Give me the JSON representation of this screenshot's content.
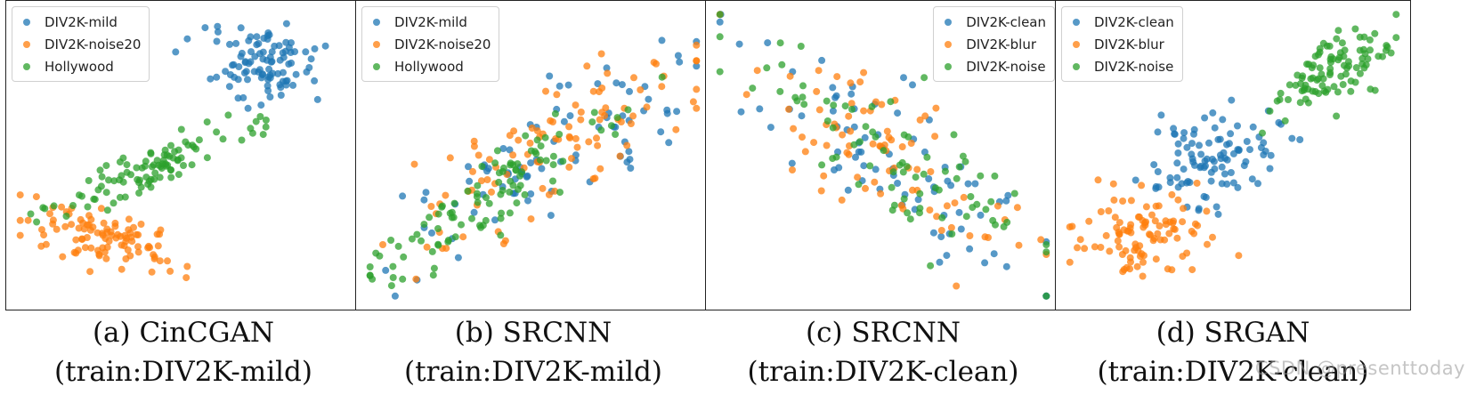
{
  "colors": {
    "blue": "#1f77b4",
    "orange": "#ff7f0e",
    "green": "#2ca02c"
  },
  "watermark": "CSDN @presenttoday",
  "chart_data": [
    {
      "type": "scatter",
      "title": "",
      "xlabel": "",
      "ylabel": "",
      "xlim": [
        0,
        100
      ],
      "ylim": [
        0,
        100
      ],
      "legend_position": "top-left",
      "caption": [
        "(a) CinCGAN",
        "(train:DIV2K-mild)"
      ],
      "series": [
        {
          "name": "DIV2K-mild",
          "color": "#1f77b4",
          "center": [
            75,
            82
          ],
          "spread": [
            8,
            7
          ],
          "angle": 10,
          "count": 100
        },
        {
          "name": "DIV2K-noise20",
          "color": "#ff7f0e",
          "center": [
            25,
            22
          ],
          "spread": [
            11,
            5
          ],
          "angle": -20,
          "count": 100
        },
        {
          "name": "Hollywood",
          "color": "#2ca02c",
          "center": [
            40,
            45
          ],
          "spread": [
            15,
            3.5
          ],
          "angle": 27,
          "count": 100
        }
      ]
    },
    {
      "type": "scatter",
      "title": "",
      "xlabel": "",
      "ylabel": "",
      "xlim": [
        0,
        100
      ],
      "ylim": [
        0,
        100
      ],
      "legend_position": "top-left",
      "caption": [
        "(b) SRCNN",
        "(train:DIV2K-mild)"
      ],
      "series": [
        {
          "name": "DIV2K-mild",
          "color": "#1f77b4",
          "center": [
            55,
            50
          ],
          "spread": [
            25,
            8
          ],
          "angle": 38,
          "count": 85
        },
        {
          "name": "DIV2K-noise20",
          "color": "#ff7f0e",
          "center": [
            55,
            52
          ],
          "spread": [
            27,
            9
          ],
          "angle": 38,
          "count": 100
        },
        {
          "name": "Hollywood",
          "color": "#2ca02c",
          "center": [
            37,
            35
          ],
          "spread": [
            25,
            6
          ],
          "angle": 38,
          "count": 100
        }
      ]
    },
    {
      "type": "scatter",
      "title": "",
      "xlabel": "",
      "ylabel": "",
      "xlim": [
        0,
        100
      ],
      "ylim": [
        0,
        100
      ],
      "legend_position": "top-right",
      "caption": [
        "(c) SRCNN",
        "(train:DIV2K-clean)"
      ],
      "series": [
        {
          "name": "DIV2K-clean",
          "color": "#1f77b4",
          "center": [
            50,
            50
          ],
          "spread": [
            28,
            9
          ],
          "angle": -42,
          "count": 80
        },
        {
          "name": "DIV2K-blur",
          "color": "#ff7f0e",
          "center": [
            50,
            50
          ],
          "spread": [
            28,
            9
          ],
          "angle": -42,
          "count": 80
        },
        {
          "name": "DIV2K-noise",
          "color": "#2ca02c",
          "center": [
            48,
            53
          ],
          "spread": [
            28,
            10
          ],
          "angle": -42,
          "count": 80
        }
      ]
    },
    {
      "type": "scatter",
      "title": "",
      "xlabel": "",
      "ylabel": "",
      "xlim": [
        0,
        100
      ],
      "ylim": [
        0,
        100
      ],
      "legend_position": "top-left",
      "caption": [
        "(d) SRGAN",
        "(train:DIV2K-clean)"
      ],
      "series": [
        {
          "name": "DIV2K-clean",
          "color": "#1f77b4",
          "center": [
            45,
            50
          ],
          "spread": [
            11,
            8
          ],
          "angle": 35,
          "count": 100
        },
        {
          "name": "DIV2K-blur",
          "color": "#ff7f0e",
          "center": [
            23,
            23
          ],
          "spread": [
            10,
            8
          ],
          "angle": 20,
          "count": 100
        },
        {
          "name": "DIV2K-noise",
          "color": "#2ca02c",
          "center": [
            80,
            80
          ],
          "spread": [
            11,
            5
          ],
          "angle": 35,
          "count": 100
        }
      ]
    }
  ]
}
